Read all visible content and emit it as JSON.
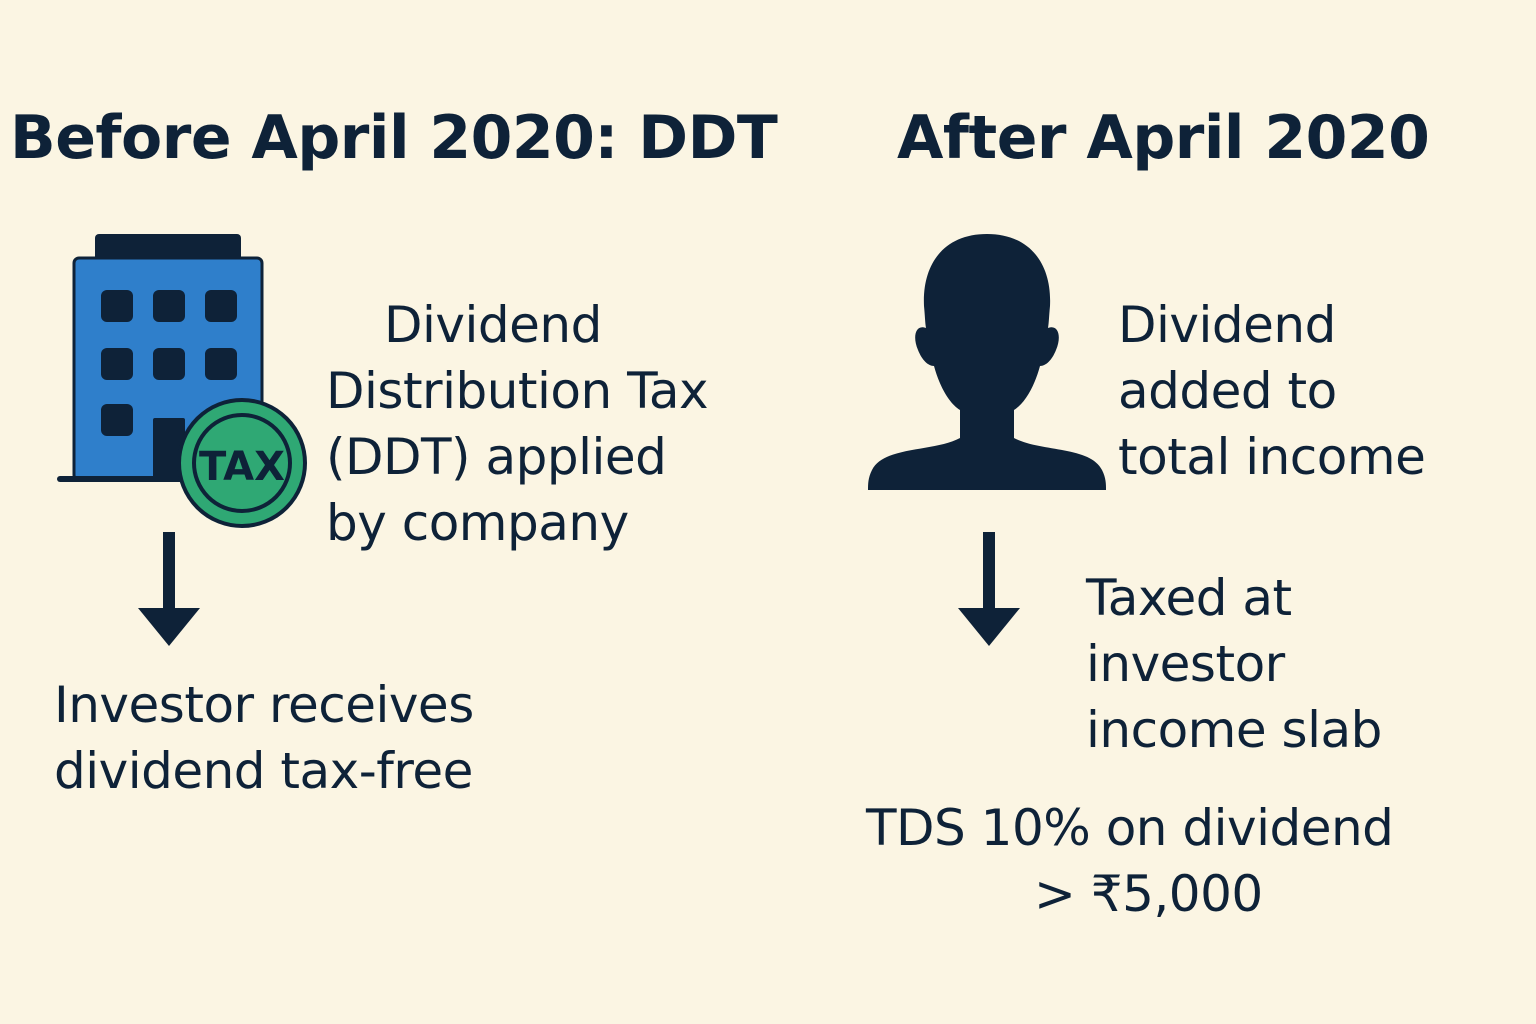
{
  "before": {
    "heading": "Before April 2020: DDT",
    "badge_text": "TAX",
    "ddt_lines": [
      "Dividend",
      "Distribution Tax",
      "(DDT) applied",
      "by company"
    ],
    "investor_lines": [
      "Investor receives",
      "dividend tax-free"
    ]
  },
  "after": {
    "heading": "After April 2020",
    "income_lines": [
      "Dividend",
      "added to",
      "total income"
    ],
    "slab_lines": [
      "Taxed at",
      "investor",
      "income slab"
    ],
    "tds_lines": [
      "TDS 10% on dividend",
      "> ₹5,000"
    ]
  },
  "colors": {
    "background": "#FBF5E3",
    "navy": "#0E2238",
    "building_blue": "#2F7FCB",
    "badge_green": "#2FA874"
  },
  "icons": {
    "company": "office-building-icon",
    "tax_badge": "tax-coin-icon",
    "investor": "person-silhouette-icon",
    "arrow": "arrow-down-icon"
  }
}
